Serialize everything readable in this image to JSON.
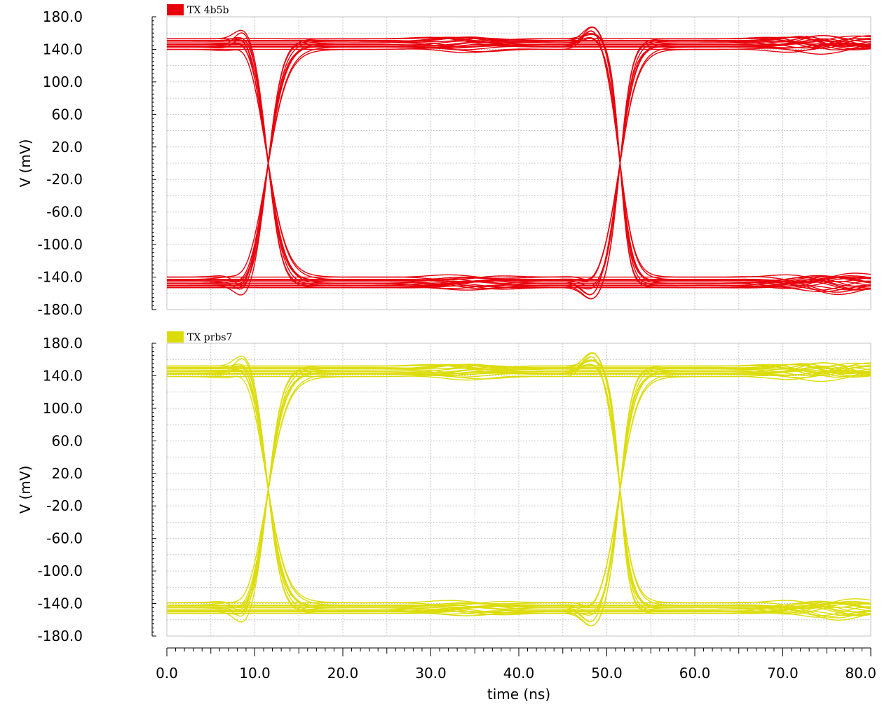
{
  "chart_data": [
    {
      "type": "line",
      "legend": "TX 4b5b",
      "color": "#e8000b",
      "ylabel": "V (mV)",
      "ylim": [
        -180,
        180
      ],
      "yticks": [
        "180.0",
        "140.0",
        "100.0",
        "60.0",
        "20.0",
        "-20.0",
        "-60.0",
        "-100.0",
        "-140.0",
        "-180.0"
      ],
      "grid": true,
      "legend_position": "top-left",
      "eye": {
        "unit_interval_ns": 40,
        "crossing_times_ns": [
          11.5,
          51.5
        ],
        "high_levels_mV": [
          143,
          146,
          150,
          153,
          140,
          148,
          144,
          151
        ],
        "low_levels_mV": [
          -143,
          -146,
          -150,
          -153,
          -140,
          -148,
          -144,
          -151
        ],
        "overshoot_peak_mV": 172,
        "undershoot_peak_mV": -172
      }
    },
    {
      "type": "line",
      "legend": "TX prbs7",
      "color": "#dcdc0a",
      "ylabel": "V (mV)",
      "xlabel": "time (ns)",
      "ylim": [
        -180,
        180
      ],
      "xlim": [
        0,
        80
      ],
      "yticks": [
        "180.0",
        "140.0",
        "100.0",
        "60.0",
        "20.0",
        "-20.0",
        "-60.0",
        "-100.0",
        "-140.0",
        "-180.0"
      ],
      "xticks": [
        "0.0",
        "10.0",
        "20.0",
        "30.0",
        "40.0",
        "50.0",
        "60.0",
        "70.0",
        "80.0"
      ],
      "grid": true,
      "legend_position": "top-left",
      "eye": {
        "unit_interval_ns": 40,
        "crossing_times_ns": [
          11.5,
          51.5
        ],
        "high_levels_mV": [
          142,
          145,
          149,
          152,
          139,
          147,
          143,
          150
        ],
        "low_levels_mV": [
          -142,
          -145,
          -149,
          -152,
          -139,
          -147,
          -143,
          -150
        ],
        "overshoot_peak_mV": 173,
        "undershoot_peak_mV": -172
      }
    }
  ]
}
